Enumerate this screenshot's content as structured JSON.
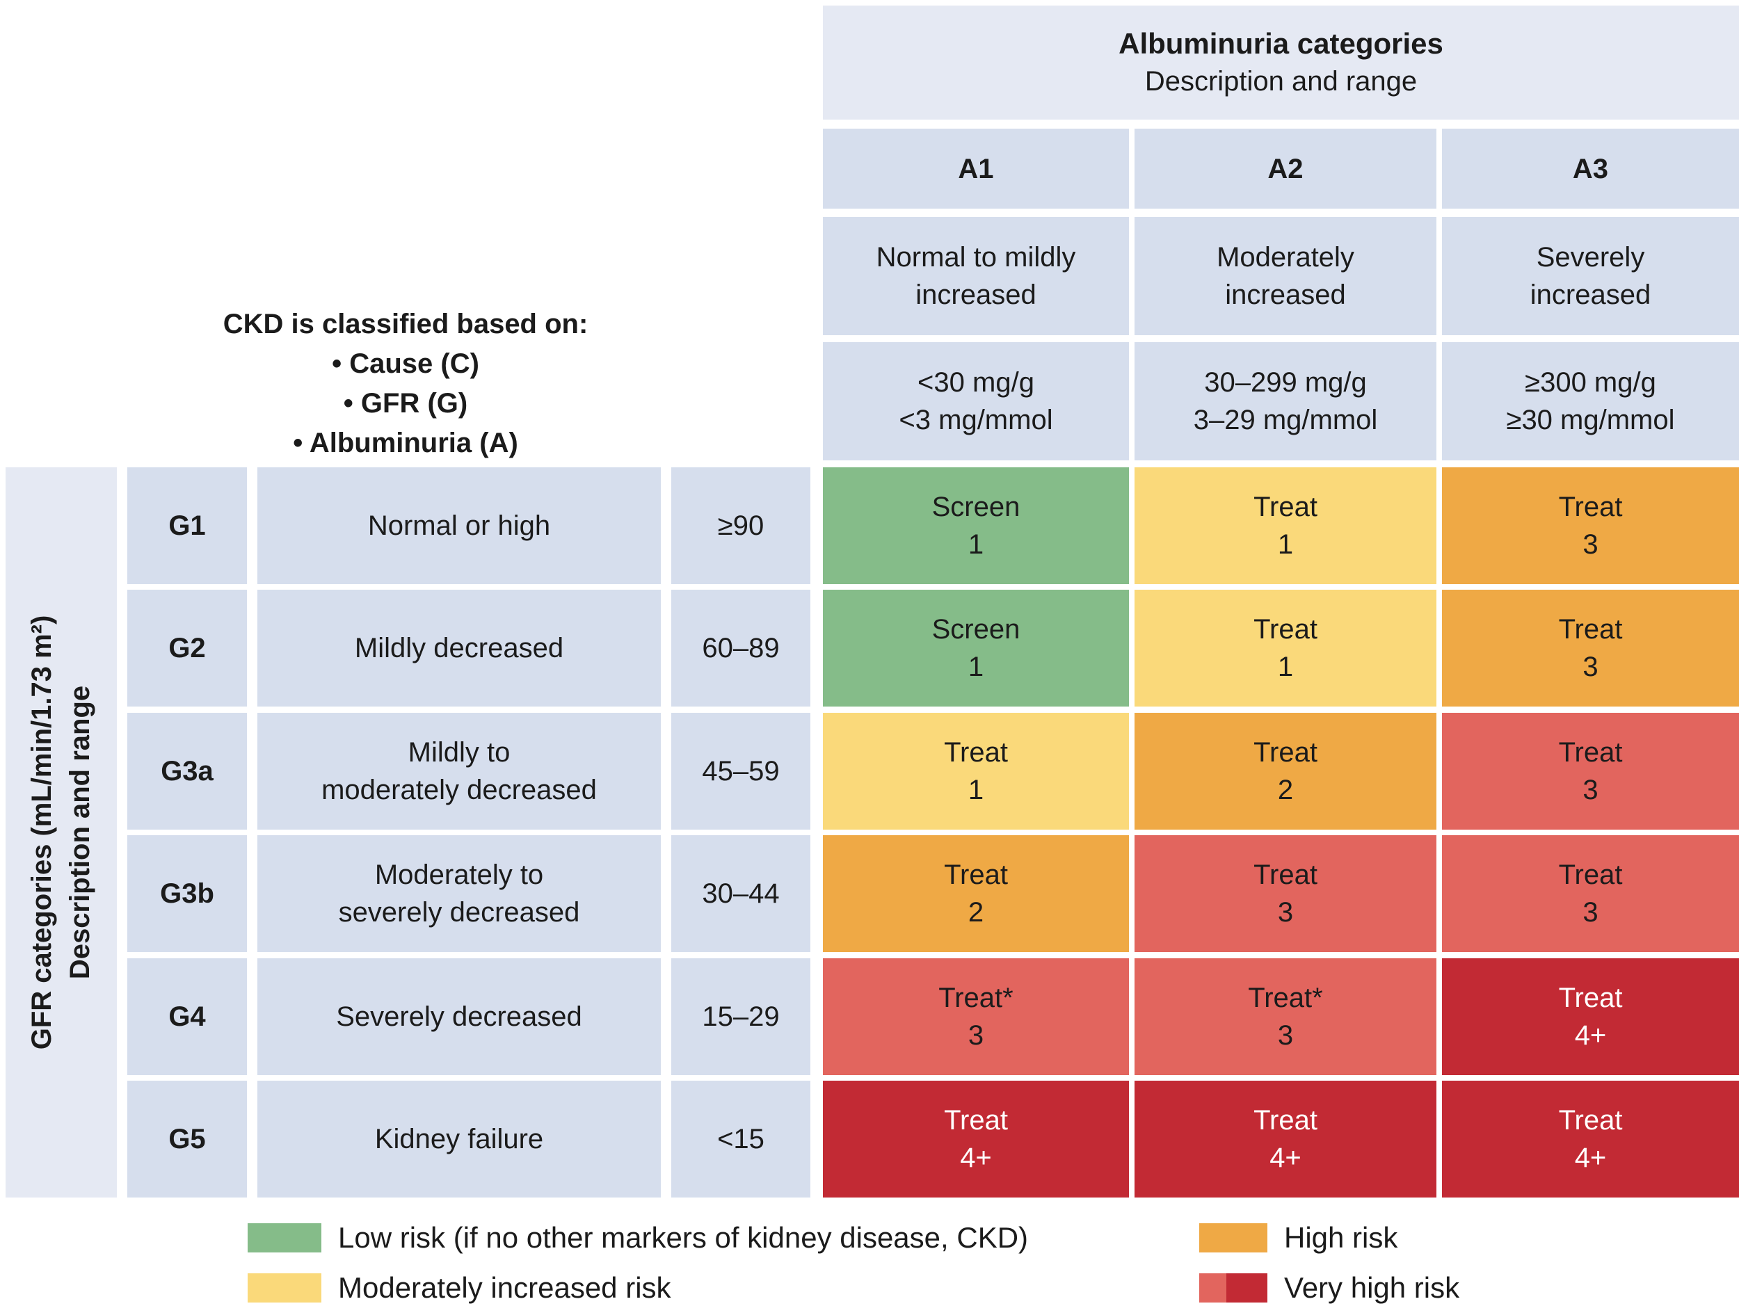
{
  "intro": {
    "title": "CKD is classified based on:",
    "bullets": [
      "• Cause (C)",
      "• GFR (G)",
      "• Albuminuria (A)"
    ]
  },
  "header": {
    "albuminuria_title": "Albuminuria categories",
    "albuminuria_subtitle": "Description and range",
    "columns": [
      {
        "code": "A1",
        "description": [
          "Normal to mildly",
          "increased"
        ],
        "range": [
          "<30 mg/g",
          "<3 mg/mmol"
        ]
      },
      {
        "code": "A2",
        "description": [
          "Moderately",
          "increased"
        ],
        "range": [
          "30–299 mg/g",
          "3–29 mg/mmol"
        ]
      },
      {
        "code": "A3",
        "description": [
          "Severely",
          "increased"
        ],
        "range": [
          "≥300 mg/g",
          "≥30 mg/mmol"
        ]
      }
    ]
  },
  "gfr_axis": {
    "line1": "GFR categories (mL/min/1.73 m²)",
    "line2": "Description and range"
  },
  "rows": [
    {
      "code": "G1",
      "description": [
        "Normal or high"
      ],
      "range": "≥90",
      "cells": [
        {
          "action": "Screen",
          "grade": "1",
          "risk": "low"
        },
        {
          "action": "Treat",
          "grade": "1",
          "risk": "moderate"
        },
        {
          "action": "Treat",
          "grade": "3",
          "risk": "high"
        }
      ]
    },
    {
      "code": "G2",
      "description": [
        "Mildly decreased"
      ],
      "range": "60–89",
      "cells": [
        {
          "action": "Screen",
          "grade": "1",
          "risk": "low"
        },
        {
          "action": "Treat",
          "grade": "1",
          "risk": "moderate"
        },
        {
          "action": "Treat",
          "grade": "3",
          "risk": "high"
        }
      ]
    },
    {
      "code": "G3a",
      "description": [
        "Mildly to",
        "moderately decreased"
      ],
      "range": "45–59",
      "cells": [
        {
          "action": "Treat",
          "grade": "1",
          "risk": "moderate"
        },
        {
          "action": "Treat",
          "grade": "2",
          "risk": "high"
        },
        {
          "action": "Treat",
          "grade": "3",
          "risk": "very_high"
        }
      ]
    },
    {
      "code": "G3b",
      "description": [
        "Moderately to",
        "severely decreased"
      ],
      "range": "30–44",
      "cells": [
        {
          "action": "Treat",
          "grade": "2",
          "risk": "high"
        },
        {
          "action": "Treat",
          "grade": "3",
          "risk": "very_high"
        },
        {
          "action": "Treat",
          "grade": "3",
          "risk": "very_high"
        }
      ]
    },
    {
      "code": "G4",
      "description": [
        "Severely decreased"
      ],
      "range": "15–29",
      "cells": [
        {
          "action": "Treat*",
          "grade": "3",
          "risk": "very_high"
        },
        {
          "action": "Treat*",
          "grade": "3",
          "risk": "very_high"
        },
        {
          "action": "Treat",
          "grade": "4+",
          "risk": "highest"
        }
      ]
    },
    {
      "code": "G5",
      "description": [
        "Kidney failure"
      ],
      "range": "<15",
      "cells": [
        {
          "action": "Treat",
          "grade": "4+",
          "risk": "highest"
        },
        {
          "action": "Treat",
          "grade": "4+",
          "risk": "highest"
        },
        {
          "action": "Treat",
          "grade": "4+",
          "risk": "highest"
        }
      ]
    }
  ],
  "legend": {
    "low_label": "Low risk (if no other markers of kidney disease, CKD)",
    "moderate_label": "Moderately increased risk",
    "high_label": "High risk",
    "very_high_label": "Very high risk"
  },
  "colors": {
    "low": {
      "bg": "#85BC89",
      "text": "#1b1b1b"
    },
    "moderate": {
      "bg": "#FAD97A",
      "text": "#1b1b1b"
    },
    "high": {
      "bg": "#EFA945",
      "text": "#1b1b1b"
    },
    "very_high": {
      "bg": "#E2655E",
      "text": "#1b1b1b"
    },
    "highest": {
      "bg": "#C22A34",
      "text": "#ffffff"
    },
    "header_outer": {
      "bg": "#E5E9F3",
      "text": "#1b1b1b"
    },
    "header_inner": {
      "bg": "#D6DEED",
      "text": "#1b1b1b"
    }
  },
  "chart_data": {
    "type": "heatmap",
    "title": "",
    "x_axis_label": "Albuminuria categories — Description and range",
    "y_axis_label": "GFR categories (mL/min/1.73 m²) — Description and range",
    "x_categories": [
      "A1",
      "A2",
      "A3"
    ],
    "x_descriptions": [
      "Normal to mildly increased",
      "Moderately increased",
      "Severely increased"
    ],
    "x_ranges": [
      "<30 mg/g, <3 mg/mmol",
      "30–299 mg/g, 3–29 mg/mmol",
      "≥300 mg/g, ≥30 mg/mmol"
    ],
    "y_categories": [
      "G1",
      "G2",
      "G3a",
      "G3b",
      "G4",
      "G5"
    ],
    "y_descriptions": [
      "Normal or high",
      "Mildly decreased",
      "Mildly to moderately decreased",
      "Moderately to severely decreased",
      "Severely decreased",
      "Kidney failure"
    ],
    "y_ranges": [
      "≥90",
      "60–89",
      "45–59",
      "30–44",
      "15–29",
      "<15"
    ],
    "cell_text": [
      [
        "Screen 1",
        "Treat 1",
        "Treat 3"
      ],
      [
        "Screen 1",
        "Treat 1",
        "Treat 3"
      ],
      [
        "Treat 1",
        "Treat 2",
        "Treat 3"
      ],
      [
        "Treat 2",
        "Treat 3",
        "Treat 3"
      ],
      [
        "Treat* 3",
        "Treat* 3",
        "Treat 4+"
      ],
      [
        "Treat 4+",
        "Treat 4+",
        "Treat 4+"
      ]
    ],
    "cell_risk": [
      [
        "low",
        "moderate",
        "high"
      ],
      [
        "low",
        "moderate",
        "high"
      ],
      [
        "moderate",
        "high",
        "very_high"
      ],
      [
        "high",
        "very_high",
        "very_high"
      ],
      [
        "very_high",
        "very_high",
        "highest"
      ],
      [
        "highest",
        "highest",
        "highest"
      ]
    ],
    "legend_entries": [
      "Low risk (if no other markers of kidney disease, CKD)",
      "Moderately increased risk",
      "High risk",
      "Very high risk"
    ],
    "legend_position": "bottom",
    "grid": false
  }
}
